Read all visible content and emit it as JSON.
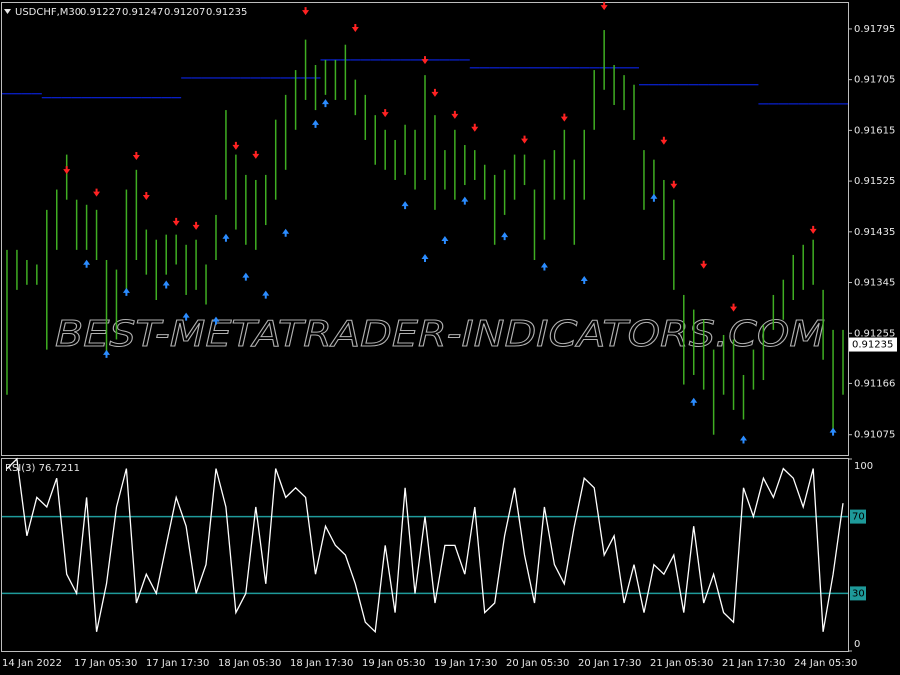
{
  "chart_data": [
    {
      "type": "ohlc",
      "title": "USDCHF,M30",
      "header_values": [
        0.91227,
        0.91247,
        0.91207,
        0.91235
      ],
      "last_price": 0.91235,
      "watermark": "BEST-METATRADER-INDICATORS.COM",
      "color": "#3fae22",
      "ylim": [
        0.91039,
        0.91841
      ],
      "yticks": [
        0.91795,
        0.91705,
        0.91615,
        0.91525,
        0.91435,
        0.91345,
        0.91255,
        0.91166,
        0.91075
      ],
      "high": [
        0.91403,
        0.91403,
        0.91385,
        0.91377,
        0.91474,
        0.9151,
        0.91572,
        0.91492,
        0.91483,
        0.91474,
        0.91385,
        0.91368,
        0.9151,
        0.91545,
        0.91439,
        0.91421,
        0.9143,
        0.9143,
        0.91412,
        0.91421,
        0.91377,
        0.91465,
        0.91651,
        0.91572,
        0.91536,
        0.91527,
        0.91536,
        0.91634,
        0.91678,
        0.91722,
        0.91776,
        0.91731,
        0.9174,
        0.9174,
        0.91767,
        0.91705,
        0.91678,
        0.91642,
        0.91616,
        0.91598,
        0.91625,
        0.91616,
        0.91713,
        0.91642,
        0.9158,
        0.91616,
        0.91589,
        0.9158,
        0.91554,
        0.91536,
        0.91545,
        0.91572,
        0.91572,
        0.9151,
        0.91563,
        0.9158,
        0.91616,
        0.91563,
        0.91616,
        0.91722,
        0.91793,
        0.91731,
        0.91713,
        0.91696,
        0.9158,
        0.91563,
        0.91527,
        0.91492,
        0.91323,
        0.91297,
        0.91279,
        0.91226,
        0.91252,
        0.91244,
        0.91181,
        0.91226,
        0.9127,
        0.91323,
        0.9135,
        0.91394,
        0.91412,
        0.91421,
        0.91332,
        0.91261,
        0.91261
      ],
      "low": [
        0.91146,
        0.91332,
        0.91341,
        0.91341,
        0.91226,
        0.91403,
        0.91492,
        0.91403,
        0.91403,
        0.91385,
        0.91217,
        0.91244,
        0.91332,
        0.91385,
        0.91359,
        0.91314,
        0.91359,
        0.91377,
        0.91323,
        0.91332,
        0.91306,
        0.91385,
        0.91492,
        0.91439,
        0.91412,
        0.91403,
        0.91447,
        0.91492,
        0.91545,
        0.91616,
        0.91669,
        0.91651,
        0.91678,
        0.91669,
        0.91669,
        0.91642,
        0.91598,
        0.91554,
        0.91545,
        0.91527,
        0.91536,
        0.9151,
        0.91527,
        0.91474,
        0.9151,
        0.91492,
        0.91518,
        0.91527,
        0.91492,
        0.91412,
        0.91465,
        0.91492,
        0.91518,
        0.91385,
        0.91421,
        0.91492,
        0.91492,
        0.91412,
        0.91492,
        0.91616,
        0.91687,
        0.9166,
        0.91651,
        0.91598,
        0.91474,
        0.91492,
        0.91385,
        0.91332,
        0.91164,
        0.91181,
        0.91155,
        0.91075,
        0.91146,
        0.91119,
        0.91102,
        0.91155,
        0.91172,
        0.91261,
        0.91279,
        0.91314,
        0.91332,
        0.91341,
        0.91208,
        0.91084,
        0.91146
      ],
      "level_line": {
        "color": "#0a22d8",
        "values": [
          0.9168,
          0.9168,
          0.9168,
          0.9168,
          0.91673,
          0.91673,
          0.91673,
          0.91673,
          0.91673,
          0.91673,
          0.91673,
          0.91673,
          0.91673,
          0.91673,
          0.91673,
          0.91673,
          0.91673,
          0.91673,
          0.91708,
          0.91708,
          0.91708,
          0.91708,
          0.91708,
          0.91708,
          0.91708,
          0.91708,
          0.91708,
          0.91708,
          0.91708,
          0.91708,
          0.91708,
          0.91708,
          0.9174,
          0.9174,
          0.9174,
          0.9174,
          0.9174,
          0.9174,
          0.9174,
          0.9174,
          0.9174,
          0.9174,
          0.9174,
          0.9174,
          0.9174,
          0.9174,
          0.9174,
          0.91726,
          0.91726,
          0.91726,
          0.91726,
          0.91726,
          0.91726,
          0.91726,
          0.91726,
          0.91726,
          0.91726,
          0.91726,
          0.91726,
          0.91726,
          0.91726,
          0.91726,
          0.91726,
          0.91726,
          0.91696,
          0.91696,
          0.91696,
          0.91696,
          0.91696,
          0.91696,
          0.91696,
          0.91696,
          0.91696,
          0.91696,
          0.91696,
          0.91696,
          0.91662,
          0.91662,
          0.91662,
          0.91662,
          0.91662,
          0.91662,
          0.91662,
          0.91662,
          0.91662
        ]
      },
      "sell_signals": {
        "color": "#ff2222",
        "values": [
          null,
          null,
          null,
          null,
          null,
          null,
          0.91541,
          null,
          null,
          0.91501,
          null,
          null,
          null,
          0.91566,
          0.91495,
          null,
          null,
          0.91449,
          null,
          0.91442,
          null,
          null,
          null,
          0.91584,
          null,
          0.91568,
          null,
          null,
          null,
          null,
          0.91823,
          null,
          null,
          null,
          null,
          0.91793,
          null,
          null,
          0.91642,
          null,
          null,
          null,
          0.91736,
          0.91678,
          null,
          0.91639,
          null,
          0.91616,
          null,
          null,
          null,
          null,
          0.91595,
          null,
          null,
          null,
          0.91634,
          null,
          null,
          null,
          0.91832,
          null,
          null,
          null,
          null,
          null,
          0.91593,
          0.91515,
          null,
          null,
          0.91373,
          null,
          null,
          0.91297,
          null,
          null,
          null,
          null,
          null,
          null,
          null,
          0.91435,
          null,
          null,
          null
        ]
      },
      "buy_signals": {
        "color": "#2b8cff",
        "values": [
          null,
          null,
          null,
          null,
          null,
          null,
          null,
          null,
          0.91382,
          null,
          0.91222,
          null,
          0.91332,
          null,
          null,
          null,
          0.91345,
          null,
          0.91288,
          null,
          null,
          0.91281,
          0.91428,
          null,
          0.91359,
          null,
          0.91327,
          null,
          0.91437,
          null,
          null,
          0.9163,
          0.91667,
          null,
          null,
          null,
          null,
          null,
          null,
          null,
          0.91486,
          null,
          0.91392,
          null,
          0.91424,
          null,
          0.91494,
          null,
          null,
          null,
          0.91431,
          null,
          null,
          null,
          0.91377,
          null,
          null,
          null,
          0.91353,
          null,
          null,
          null,
          null,
          null,
          null,
          0.91499,
          null,
          null,
          null,
          0.91137,
          null,
          null,
          null,
          null,
          0.9107,
          null,
          null,
          null,
          null,
          null,
          null,
          null,
          null,
          0.91084,
          null
        ]
      }
    },
    {
      "type": "line",
      "title": "RSI(3) 76.7211",
      "color": "#ffffff",
      "ylim": [
        0,
        100
      ],
      "yticks": [
        100,
        0
      ],
      "levels": [
        70,
        30
      ],
      "level_color": "#1e9a9a",
      "values": [
        95,
        100,
        60,
        80,
        75,
        90,
        40,
        30,
        80,
        10,
        35,
        75,
        95,
        25,
        40,
        30,
        55,
        80,
        65,
        30,
        45,
        95,
        75,
        20,
        30,
        75,
        35,
        95,
        80,
        85,
        80,
        40,
        65,
        55,
        50,
        35,
        15,
        10,
        55,
        20,
        85,
        30,
        70,
        25,
        55,
        55,
        40,
        75,
        20,
        25,
        60,
        85,
        50,
        25,
        75,
        45,
        35,
        65,
        90,
        85,
        50,
        60,
        25,
        45,
        20,
        45,
        40,
        50,
        20,
        65,
        25,
        40,
        20,
        15,
        85,
        70,
        90,
        80,
        95,
        90,
        75,
        95,
        10,
        40,
        77
      ],
      "x_labels": [
        "14 Jan 2022",
        "17 Jan 05:30",
        "17 Jan 17:30",
        "18 Jan 05:30",
        "18 Jan 17:30",
        "19 Jan 05:30",
        "19 Jan 17:30",
        "20 Jan 05:30",
        "20 Jan 17:30",
        "21 Jan 05:30",
        "21 Jan 17:30",
        "24 Jan 05:30"
      ]
    }
  ]
}
